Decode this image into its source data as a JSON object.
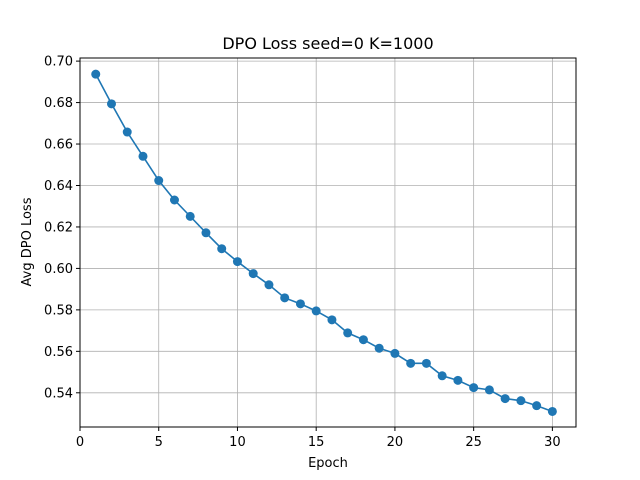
{
  "chart_data": {
    "type": "line",
    "title": "DPO Loss seed=0 K=1000",
    "xlabel": "Epoch",
    "ylabel": "Avg DPO Loss",
    "xlim": [
      0,
      31.5
    ],
    "ylim": [
      0.5235,
      0.7015
    ],
    "xticks": [
      0,
      5,
      10,
      15,
      20,
      25,
      30
    ],
    "yticks": [
      0.54,
      0.56,
      0.58,
      0.6,
      0.62,
      0.64,
      0.66,
      0.68,
      0.7
    ],
    "grid": true,
    "markers": true,
    "series": [
      {
        "color": "#1f77b4",
        "x": [
          1,
          2,
          3,
          4,
          5,
          6,
          7,
          8,
          9,
          10,
          11,
          12,
          13,
          14,
          15,
          16,
          17,
          18,
          19,
          20,
          21,
          22,
          23,
          24,
          25,
          26,
          27,
          28,
          29,
          30
        ],
        "y": [
          0.6937,
          0.6794,
          0.6658,
          0.6541,
          0.6424,
          0.633,
          0.6251,
          0.6172,
          0.6095,
          0.6033,
          0.5975,
          0.5921,
          0.5858,
          0.5829,
          0.5795,
          0.5752,
          0.5689,
          0.5656,
          0.5615,
          0.559,
          0.5542,
          0.5542,
          0.5482,
          0.546,
          0.5425,
          0.5414,
          0.5372,
          0.5362,
          0.5338,
          0.531
        ]
      }
    ]
  }
}
